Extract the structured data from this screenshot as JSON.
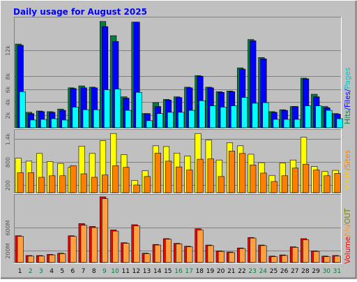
{
  "title": "Daily usage for August 2025",
  "colors": {
    "background": "#c0c0c0",
    "title": "#0000ff",
    "hits": "#008040",
    "files": "#0000ff",
    "pages": "#00ffff",
    "visits": "#ffff00",
    "sites": "#ff8000",
    "volume": "#ff0000",
    "in": "#ffa040",
    "out": "#808000",
    "weekend_day_label": "#008040"
  },
  "legends": {
    "top": [
      {
        "text": "Hits",
        "color": "#008040"
      },
      {
        "text": "/",
        "color": "#0000ff"
      },
      {
        "text": "Files",
        "color": "#0000ff"
      },
      {
        "text": "/",
        "color": "#0000ff"
      },
      {
        "text": "Pages",
        "color": "#00c8c8"
      }
    ],
    "middle": [
      {
        "text": "Visits",
        "color": "#ffd000"
      },
      {
        "text": "/",
        "color": "#ff8000"
      },
      {
        "text": "Sites",
        "color": "#ff8000"
      }
    ],
    "bottom": [
      {
        "text": "Volume",
        "color": "#ff0000"
      },
      {
        "text": "/",
        "color": "#ff8000"
      },
      {
        "text": "IN",
        "color": "#ffa040"
      },
      {
        "text": "/",
        "color": "#ff8000"
      },
      {
        "text": "OUT",
        "color": "#808000"
      }
    ]
  },
  "chart_data": {
    "type": "bar",
    "title": "Daily usage for August 2025",
    "days": [
      "1",
      "2",
      "3",
      "4",
      "5",
      "6",
      "7",
      "8",
      "9",
      "10",
      "11",
      "12",
      "13",
      "14",
      "15",
      "16",
      "17",
      "18",
      "19",
      "20",
      "21",
      "22",
      "23",
      "24",
      "25",
      "26",
      "27",
      "28",
      "29",
      "30",
      "31"
    ],
    "weekend_days": [
      "2",
      "3",
      "9",
      "10",
      "16",
      "17",
      "23",
      "24",
      "30",
      "31"
    ],
    "panels": [
      {
        "name": "hits-files-pages",
        "ylim": [
          0,
          16800
        ],
        "ticks": [
          {
            "value": 2000,
            "label": "2k"
          },
          {
            "value": 4000,
            "label": "4k"
          },
          {
            "value": 6000,
            "label": "6k"
          },
          {
            "value": 8000,
            "label": "8k"
          },
          {
            "value": 12000,
            "label": "12k"
          }
        ],
        "series": [
          {
            "name": "Hits",
            "values": [
              13000,
              2400,
              2600,
              2500,
              2900,
              6200,
              6500,
              6300,
              16500,
              14300,
              4800,
              16400,
              2200,
              3900,
              4400,
              4800,
              6300,
              8100,
              6300,
              5600,
              5700,
              9300,
              13700,
              10900,
              2500,
              2800,
              3300,
              7700,
              5200,
              3300,
              2200
            ]
          },
          {
            "name": "Files",
            "values": [
              12800,
              2200,
              2500,
              2400,
              2700,
              6100,
              6200,
              6200,
              15700,
              13400,
              4600,
              16400,
              2200,
              3300,
              4300,
              4700,
              6200,
              8000,
              6200,
              5500,
              5600,
              9100,
              13500,
              10700,
              2400,
              2700,
              3300,
              7600,
              4800,
              3100,
              2100
            ]
          },
          {
            "name": "Pages",
            "values": [
              5600,
              1200,
              1300,
              1400,
              1200,
              3200,
              2800,
              2800,
              5900,
              6000,
              2700,
              5500,
              1100,
              2200,
              2400,
              2400,
              2700,
              4200,
              3400,
              3200,
              3400,
              4700,
              3800,
              3900,
              1300,
              1300,
              1300,
              3400,
              3400,
              2700,
              1400
            ]
          }
        ]
      },
      {
        "name": "visits-sites",
        "ylim": [
          0,
          1580
        ],
        "ticks": [
          {
            "value": 200,
            "label": "200"
          },
          {
            "value": 800,
            "label": "800"
          },
          {
            "value": 1400,
            "label": "1.4k"
          }
        ],
        "series": [
          {
            "name": "Visits",
            "values": [
              900,
              820,
              1020,
              810,
              760,
              660,
              1210,
              1020,
              1350,
              1540,
              990,
              320,
              570,
              1220,
              1200,
              1030,
              950,
              1540,
              1370,
              850,
              1300,
              1220,
              1000,
              780,
              450,
              770,
              850,
              1440,
              680,
              550,
              580
            ]
          },
          {
            "name": "Sites",
            "values": [
              520,
              520,
              400,
              440,
              440,
              700,
              490,
              400,
              460,
              700,
              660,
              200,
              420,
              1030,
              820,
              670,
              590,
              870,
              880,
              420,
              1080,
              1020,
              720,
              510,
              290,
              440,
              640,
              740,
              590,
              440,
              500
            ]
          }
        ]
      },
      {
        "name": "volume",
        "ylim": [
          0,
          1130
        ],
        "ticks": [
          {
            "value": 200,
            "label": "200M"
          },
          {
            "value": 600,
            "label": "600M"
          }
        ],
        "series": [
          {
            "name": "Volume",
            "values": [
              460,
              120,
              120,
              140,
              160,
              460,
              670,
              620,
              1130,
              560,
              340,
              650,
              160,
              310,
              410,
              330,
              280,
              580,
              300,
              200,
              180,
              250,
              430,
              300,
              110,
              130,
              270,
              410,
              200,
              110,
              120
            ]
          },
          {
            "name": "IN",
            "values": [
              450,
              110,
              110,
              130,
              150,
              450,
              640,
              600,
              1100,
              540,
              330,
              630,
              150,
              300,
              400,
              320,
              270,
              560,
              290,
              190,
              170,
              240,
              420,
              290,
              100,
              120,
              260,
              390,
              190,
              100,
              110
            ]
          }
        ]
      }
    ]
  }
}
